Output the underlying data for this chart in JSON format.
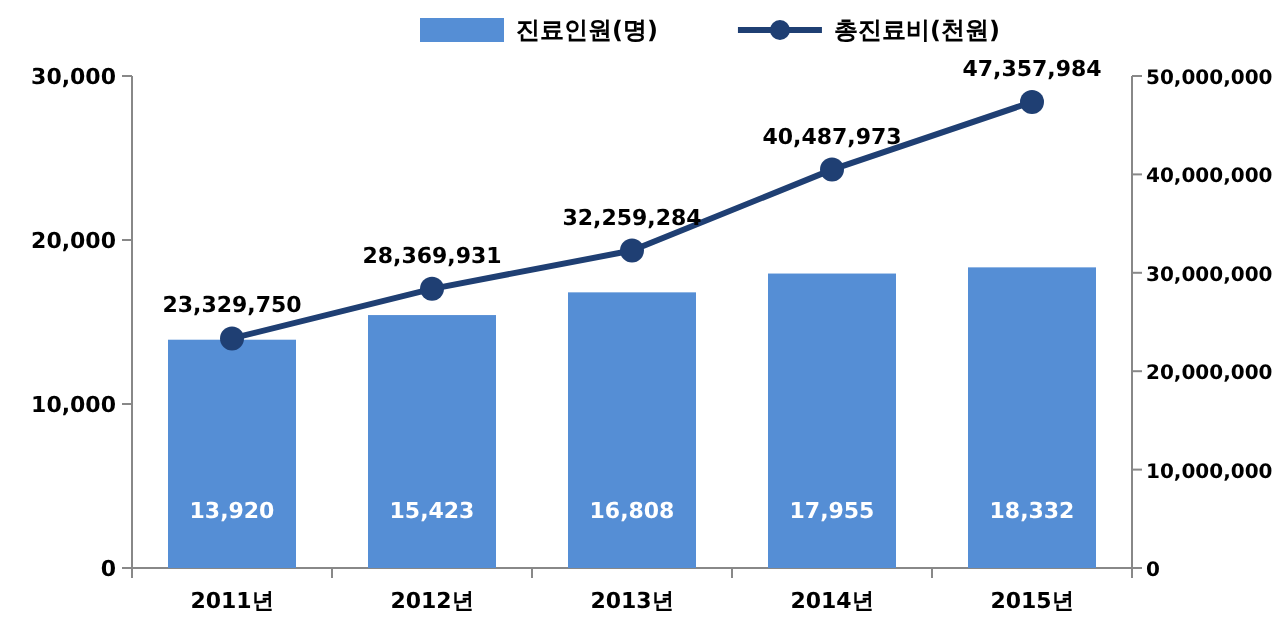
{
  "chart_data": {
    "type": "bar",
    "categories": [
      "2011년",
      "2012년",
      "2013년",
      "2014년",
      "2015년"
    ],
    "series": [
      {
        "name": "진료인원(명)",
        "color": "#558ed5",
        "values": [
          13920,
          15423,
          16808,
          17955,
          18332
        ],
        "value_labels": [
          "13,920",
          "15,423",
          "16,808",
          "17,955",
          "18,332"
        ]
      },
      {
        "name": "총진료비(천원)",
        "type": "line",
        "axis": "y2",
        "color": "#1f3f73",
        "marker": "circle",
        "values": [
          23329750,
          28369931,
          32259284,
          40487973,
          47357984
        ],
        "value_labels": [
          "23,329,750",
          "28,369,931",
          "32,259,284",
          "40,487,973",
          "47,357,984"
        ]
      }
    ],
    "ylim": [
      0,
      30000
    ],
    "yticks": [
      0,
      {
        "value": 10000,
        "label": "10,000"
      },
      {
        "value": 20000,
        "label": "20,000"
      },
      {
        "value": 30000,
        "label": "30,000"
      }
    ],
    "y2lim": [
      0,
      50000000
    ],
    "y2ticks": [
      0,
      {
        "value": 10000000,
        "label": "10,000,000"
      },
      {
        "value": 20000000,
        "label": "20,000,000"
      },
      {
        "value": 30000000,
        "label": "30,000,000"
      },
      {
        "value": 40000000,
        "label": "40,000,000"
      },
      {
        "value": 50000000,
        "label": "50,000,000"
      }
    ],
    "legend": "top"
  }
}
